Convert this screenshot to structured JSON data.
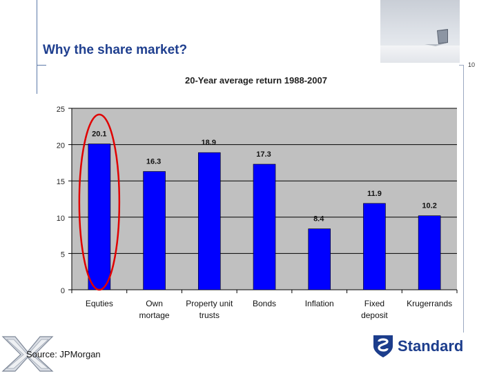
{
  "slide": {
    "title": "Why the share market?",
    "page_number": "10",
    "source": "Source: JPMorgan",
    "brand_name": "Standard"
  },
  "colors": {
    "title": "#1f3f8f",
    "bar": "#0000ff",
    "plot_background": "#c0c0c0",
    "highlight_ellipse": "#e00000"
  },
  "icons": {
    "top_right": "laptop-photo",
    "bottom_left": "jse-logo",
    "bottom_right": "standard-bank-shield-logo"
  },
  "chart_data": {
    "type": "bar",
    "title": "20-Year average return 1988-2007",
    "categories": [
      "Equties",
      "Own\nmortage",
      "Property unit\ntrusts",
      "Bonds",
      "Inflation",
      "Fixed\ndeposit",
      "Krugerrands"
    ],
    "values": [
      20.1,
      16.3,
      18.9,
      17.3,
      8.4,
      11.9,
      10.2
    ],
    "data_labels": [
      "20.1",
      "16.3",
      "18.9",
      "17.3",
      "8.4",
      "11.9",
      "10.2"
    ],
    "ylim": [
      0,
      25
    ],
    "yticks": [
      0,
      5,
      10,
      15,
      20,
      25
    ],
    "grid": true,
    "xlabel": "",
    "ylabel": "",
    "highlighted_category": "Equties"
  }
}
